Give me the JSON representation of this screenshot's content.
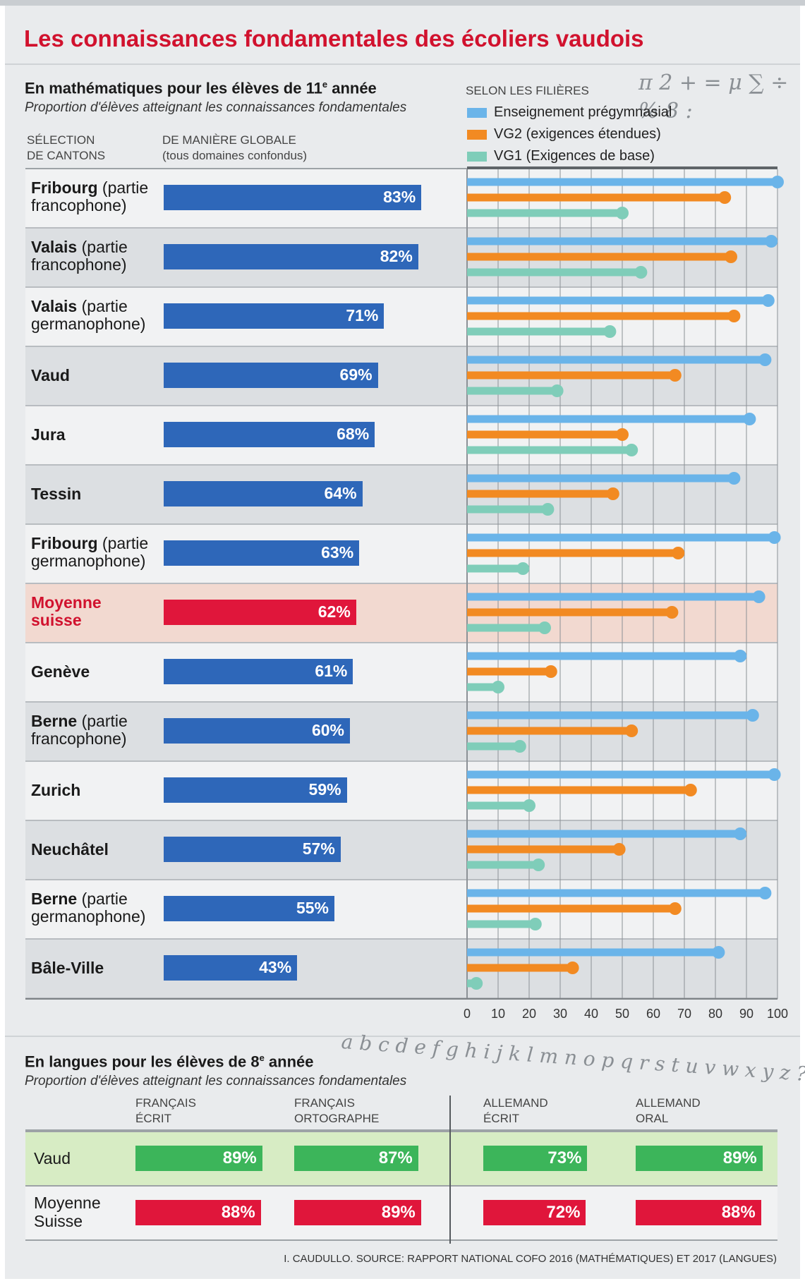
{
  "title": "Les connaissances fondamentales des écoliers vaudois",
  "math": {
    "heading": "En mathématiques pour les élèves de 11",
    "heading_sup": "e",
    "heading_tail": " année",
    "subtitle": "Proportion d'élèves atteignant les connaissances fondamentales",
    "col_selection": "SÉLECTION\nDE CANTONS",
    "col_global": "DE MANIÈRE GLOBALE\n(tous domaines confondus)",
    "legend_title": "SELON LES FILIÈRES",
    "math_symbols": "π 2 + = μ ∑ ÷ % 8 :"
  },
  "colors": {
    "title_red": "#d1122e",
    "global_blue": "#2e67b9",
    "average_red": "#e0163b",
    "pregym": "#6ab4e9",
    "vg2": "#f28a22",
    "vg1": "#7fcdb9",
    "lang_green": "#3cb55a",
    "highlight_row": "#f2d9d0",
    "vaud_row": "#d7ecc4"
  },
  "chart_data": [
    {
      "type": "bar",
      "title": "En mathématiques pour les élèves de 11e année — de manière globale",
      "orientation": "horizontal",
      "unit": "%",
      "categories": [
        {
          "name": "Fribourg",
          "detail": " (partie",
          "detail2": "francophone)"
        },
        {
          "name": "Valais",
          "detail": " (partie",
          "detail2": "francophone)"
        },
        {
          "name": "Valais",
          "detail": " (partie",
          "detail2": "germanophone)"
        },
        {
          "name": "Vaud",
          "detail": "",
          "detail2": ""
        },
        {
          "name": "Jura",
          "detail": "",
          "detail2": ""
        },
        {
          "name": "Tessin",
          "detail": "",
          "detail2": ""
        },
        {
          "name": "Fribourg",
          "detail": " (partie",
          "detail2": "germanophone)"
        },
        {
          "name": "Moyenne",
          "detail": "",
          "detail2": "suisse",
          "highlight": true
        },
        {
          "name": "Genève",
          "detail": "",
          "detail2": ""
        },
        {
          "name": "Berne",
          "detail": " (partie",
          "detail2": "francophone)"
        },
        {
          "name": "Zurich",
          "detail": "",
          "detail2": ""
        },
        {
          "name": "Neuchâtel",
          "detail": "",
          "detail2": ""
        },
        {
          "name": "Berne",
          "detail": " (partie",
          "detail2": "germanophone)"
        },
        {
          "name": "Bâle-Ville",
          "detail": "",
          "detail2": ""
        }
      ],
      "values": [
        83,
        82,
        71,
        69,
        68,
        64,
        63,
        62,
        61,
        60,
        59,
        57,
        55,
        43
      ],
      "value_labels": [
        "83%",
        "82%",
        "71%",
        "69%",
        "68%",
        "64%",
        "63%",
        "62%",
        "61%",
        "60%",
        "59%",
        "57%",
        "55%",
        "43%"
      ]
    },
    {
      "type": "bar",
      "title": "Selon les filières",
      "orientation": "horizontal",
      "style": "lollipop",
      "xlim": [
        0,
        100
      ],
      "xticks": [
        0,
        10,
        20,
        30,
        40,
        50,
        60,
        70,
        80,
        90,
        100
      ],
      "grid": true,
      "series": [
        {
          "name": "Enseignement prégymnasial",
          "values": [
            100,
            98,
            97,
            96,
            91,
            86,
            99,
            94,
            88,
            92,
            99,
            88,
            96,
            81
          ]
        },
        {
          "name": "VG2 (exigences étendues)",
          "values": [
            83,
            85,
            86,
            67,
            50,
            47,
            68,
            66,
            27,
            53,
            72,
            49,
            67,
            34
          ]
        },
        {
          "name": "VG1 (Exigences de base)",
          "values": [
            50,
            56,
            46,
            29,
            53,
            26,
            18,
            25,
            10,
            17,
            20,
            23,
            22,
            3
          ]
        }
      ]
    },
    {
      "type": "bar",
      "title": "En langues pour les élèves de 8e année",
      "orientation": "horizontal",
      "unit": "%",
      "xlim": [
        0,
        100
      ],
      "categories": [
        "FRANÇAIS\nÉCRIT",
        "FRANÇAIS\nORTOGRAPHE",
        "ALLEMAND\nÉCRIT",
        "ALLEMAND\nORAL"
      ],
      "series": [
        {
          "name": "Vaud",
          "values": [
            89,
            87,
            73,
            89
          ],
          "value_labels": [
            "89%",
            "87%",
            "73%",
            "89%"
          ]
        },
        {
          "name": "Moyenne\nSuisse",
          "values": [
            88,
            89,
            72,
            88
          ],
          "value_labels": [
            "88%",
            "89%",
            "72%",
            "88%"
          ]
        }
      ]
    }
  ],
  "lang": {
    "heading": "En langues pour les élèves de 8",
    "heading_sup": "e",
    "heading_tail": " année",
    "subtitle": "Proportion d'élèves atteignant les connaissances fondamentales",
    "alphabet": "a b c d e f g h i j k l m n o p q r s t u v w x y z ? , : “ ”"
  },
  "source": "I. CAUDULLO. SOURCE: RAPPORT NATIONAL COFO 2016 (MATHÉMATIQUES) ET 2017 (LANGUES)"
}
